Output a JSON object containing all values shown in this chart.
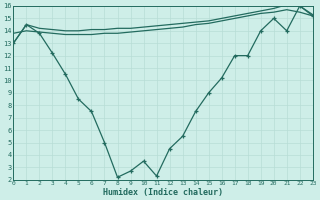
{
  "line_a_x": [
    0,
    1,
    2,
    3,
    4,
    5,
    6,
    7,
    8,
    9,
    10,
    11,
    12,
    13,
    14,
    15,
    16,
    17,
    18,
    19,
    20,
    21,
    22,
    23
  ],
  "line_a_y": [
    13.0,
    14.5,
    14.2,
    14.1,
    14.0,
    14.0,
    14.1,
    14.1,
    14.2,
    14.2,
    14.3,
    14.4,
    14.5,
    14.6,
    14.7,
    14.8,
    15.0,
    15.2,
    15.4,
    15.6,
    15.8,
    16.1,
    16.0,
    15.3
  ],
  "line_b_x": [
    0,
    1,
    2,
    3,
    4,
    5,
    6,
    7,
    8,
    9,
    10,
    11,
    12,
    13,
    14,
    15,
    16,
    17,
    18,
    19,
    20,
    21,
    22,
    23
  ],
  "line_b_y": [
    13.8,
    14.0,
    13.9,
    13.8,
    13.7,
    13.7,
    13.7,
    13.8,
    13.8,
    13.9,
    14.0,
    14.1,
    14.2,
    14.3,
    14.5,
    14.6,
    14.8,
    15.0,
    15.2,
    15.4,
    15.5,
    15.7,
    15.5,
    15.2
  ],
  "line_c_x": [
    0,
    1,
    2,
    3,
    4,
    5,
    6,
    7,
    8,
    9,
    10,
    11,
    12,
    13,
    14,
    15,
    16,
    17,
    18,
    19,
    20,
    21,
    22,
    23
  ],
  "line_c_y": [
    13.0,
    14.5,
    13.8,
    12.2,
    10.5,
    8.5,
    7.5,
    5.0,
    2.2,
    2.7,
    3.5,
    2.3,
    4.5,
    5.5,
    7.5,
    9.0,
    10.2,
    12.0,
    12.0,
    14.0,
    15.0,
    14.0,
    16.0,
    15.2
  ],
  "line_color": "#236b5f",
  "bg_color": "#ceeee8",
  "grid_color": "#b8ddd6",
  "xlabel": "Humidex (Indice chaleur)",
  "ylim": [
    2,
    16
  ],
  "xlim": [
    0,
    23
  ],
  "yticks": [
    2,
    3,
    4,
    5,
    6,
    7,
    8,
    9,
    10,
    11,
    12,
    13,
    14,
    15,
    16
  ],
  "xticks": [
    0,
    1,
    2,
    3,
    4,
    5,
    6,
    7,
    8,
    9,
    10,
    11,
    12,
    13,
    14,
    15,
    16,
    17,
    18,
    19,
    20,
    21,
    22,
    23
  ]
}
